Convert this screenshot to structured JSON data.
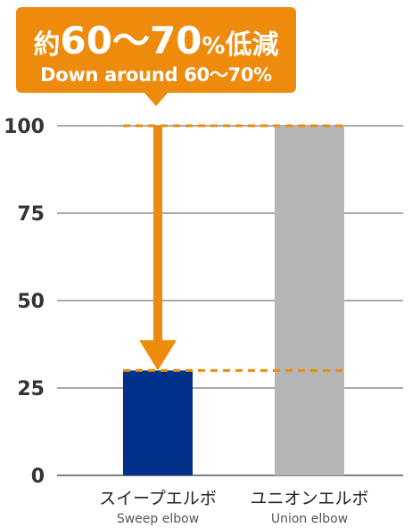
{
  "colors": {
    "accent": "#ee8a0c",
    "sweep_bar": "#003087",
    "union_bar": "#b5b5b5",
    "gridline": "#555555",
    "text": "#333333"
  },
  "callout": {
    "prefix": "約",
    "number": "60～70",
    "percent": "%",
    "suffix": "低減",
    "subtitle": "Down around 60～70%"
  },
  "chart_data": {
    "type": "bar",
    "categories": [
      "スイープエルボ",
      "ユニオンエルボ"
    ],
    "categories_en": [
      "Sweep elbow",
      "Union elbow"
    ],
    "values": [
      30,
      100
    ],
    "bar_colors": [
      "#003087",
      "#b5b5b5"
    ],
    "ylim": [
      0,
      100
    ],
    "yticks": [
      "0",
      "25",
      "50",
      "75",
      "100"
    ],
    "ytick_values": [
      0,
      25,
      50,
      75,
      100
    ],
    "grid": true,
    "reference_lines": [
      100,
      30
    ],
    "annotation": "約60～70%低減 / Down around 60～70%",
    "title": "",
    "xlabel": "",
    "ylabel": ""
  }
}
